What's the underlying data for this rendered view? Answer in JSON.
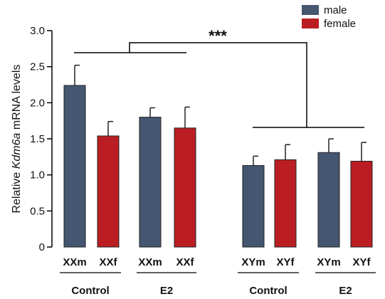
{
  "chart_data": {
    "type": "bar",
    "ylabel_parts": [
      "Relative ",
      "Kdm6a",
      " mRNA levels"
    ],
    "ylim": [
      0,
      3.0
    ],
    "yticks": [
      "0",
      "0.5",
      "1.0",
      "1.5",
      "2.0",
      "2.5",
      "3.0"
    ],
    "ytick_values": [
      0,
      0.5,
      1.0,
      1.5,
      2.0,
      2.5,
      3.0
    ],
    "grid": false,
    "legend_position": "top-right",
    "legend": [
      {
        "label": "male",
        "color": "#455670"
      },
      {
        "label": "female",
        "color": "#bb1e22"
      }
    ],
    "bars": [
      {
        "category": "XXm",
        "value": 2.24,
        "error": 0.28,
        "sex": "male"
      },
      {
        "category": "XXf",
        "value": 1.54,
        "error": 0.2,
        "sex": "female"
      },
      {
        "category": "XXm",
        "value": 1.8,
        "error": 0.13,
        "sex": "male"
      },
      {
        "category": "XXf",
        "value": 1.65,
        "error": 0.29,
        "sex": "female"
      },
      {
        "category": "XYm",
        "value": 1.13,
        "error": 0.13,
        "sex": "male"
      },
      {
        "category": "XYf",
        "value": 1.21,
        "error": 0.21,
        "sex": "female"
      },
      {
        "category": "XYm",
        "value": 1.31,
        "error": 0.19,
        "sex": "male"
      },
      {
        "category": "XYf",
        "value": 1.19,
        "error": 0.26,
        "sex": "female"
      }
    ],
    "groups": [
      "Control",
      "E2",
      "Control",
      "E2"
    ],
    "significance": "***"
  }
}
